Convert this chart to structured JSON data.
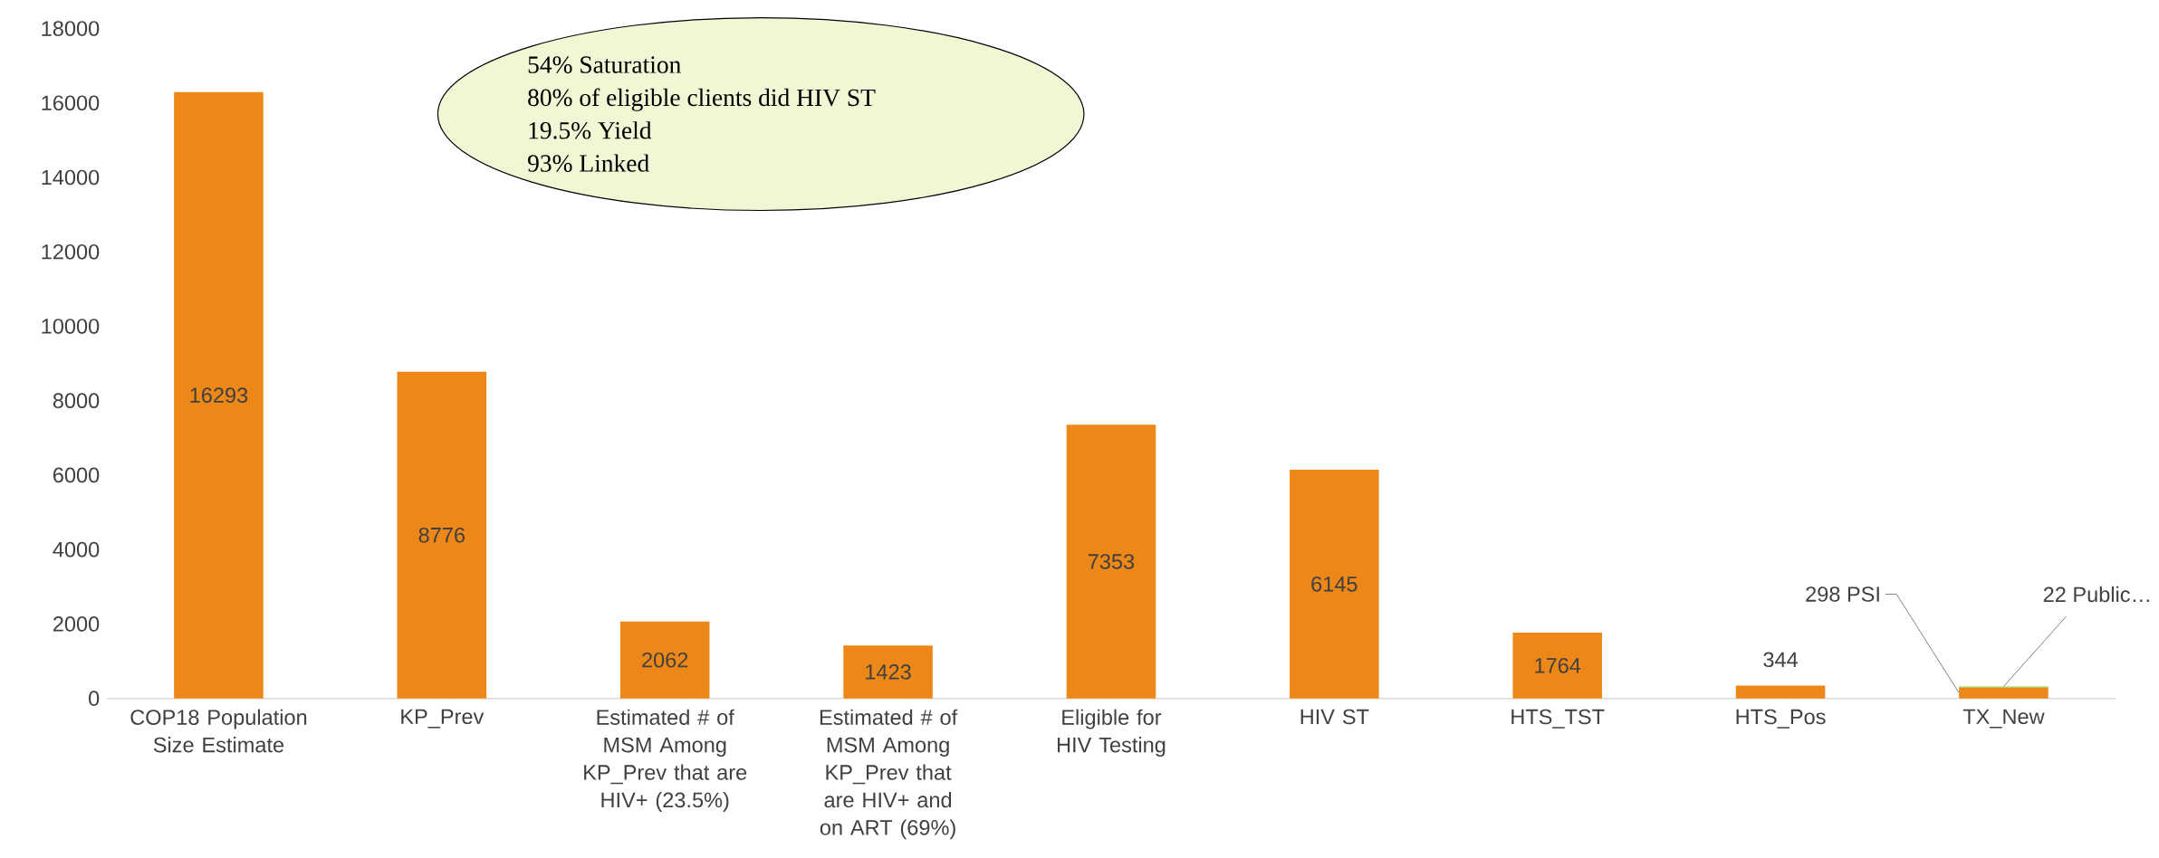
{
  "chart_data": {
    "type": "bar",
    "stacked": true,
    "categories": [
      "COP18 Population Size Estimate",
      "KP_Prev",
      "Estimated # of MSM Among KP_Prev that are HIV+ (23.5%)",
      "Estimated # of MSM Among KP_Prev that are HIV+ and on ART (69%)",
      "Eligible for HIV Testing",
      "HIV ST",
      "HTS_TST",
      "HTS_Pos",
      "TX_New"
    ],
    "series": [
      {
        "color": "#ed8717",
        "values": [
          16293,
          8776,
          2062,
          1423,
          7353,
          6145,
          1764,
          344,
          298
        ],
        "value_labels": [
          "16293",
          "8776",
          "2062",
          "1423",
          "7353",
          "6145",
          "1764",
          "344",
          "298 PSI"
        ]
      },
      {
        "color": "#92c83e",
        "values": [
          null,
          null,
          null,
          null,
          null,
          null,
          null,
          null,
          22
        ],
        "value_labels": [
          null,
          null,
          null,
          null,
          null,
          null,
          null,
          null,
          "22 Public…"
        ]
      }
    ],
    "ylim": [
      0,
      18000
    ],
    "yticks": [
      0,
      2000,
      4000,
      6000,
      8000,
      10000,
      12000,
      14000,
      16000,
      18000
    ],
    "annotations": [
      "54% Saturation",
      "80% of eligible clients did HIV ST",
      "19.5% Yield",
      "93% Linked"
    ]
  }
}
